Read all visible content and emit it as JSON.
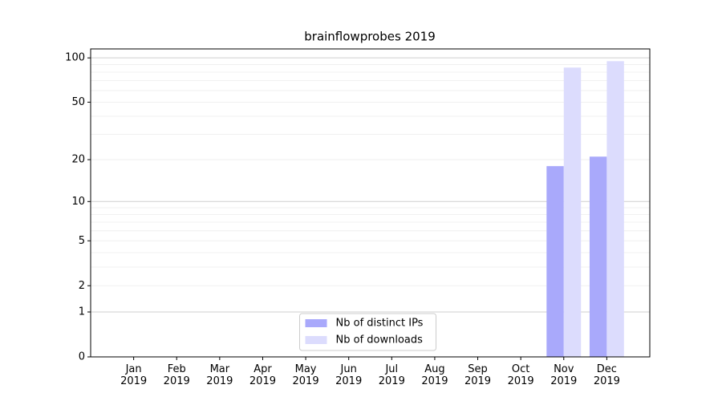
{
  "chart_data": {
    "type": "bar",
    "title": "brainflowprobes 2019",
    "categories": [
      "Jan\n2019",
      "Feb\n2019",
      "Mar\n2019",
      "Apr\n2019",
      "May\n2019",
      "Jun\n2019",
      "Jul\n2019",
      "Aug\n2019",
      "Sep\n2019",
      "Oct\n2019",
      "Nov\n2019",
      "Dec\n2019"
    ],
    "series": [
      {
        "name": "Nb of distinct IPs",
        "color": "#a9a9fb",
        "values": [
          0,
          0,
          0,
          0,
          0,
          0,
          0,
          0,
          0,
          0,
          18,
          21
        ]
      },
      {
        "name": "Nb of downloads",
        "color": "#dcdcfd",
        "values": [
          0,
          0,
          0,
          0,
          0,
          0,
          0,
          0,
          0,
          0,
          86,
          95
        ]
      }
    ],
    "yscale": "log1p",
    "ylim": [
      0,
      115
    ],
    "yticks": [
      0,
      1,
      2,
      5,
      10,
      20,
      50,
      100
    ],
    "major_grid": [
      1,
      10,
      100
    ],
    "minor_grid": [
      2,
      3,
      4,
      5,
      6,
      7,
      8,
      9,
      20,
      30,
      40,
      50,
      60,
      70,
      80,
      90
    ],
    "legend": "lower center"
  }
}
